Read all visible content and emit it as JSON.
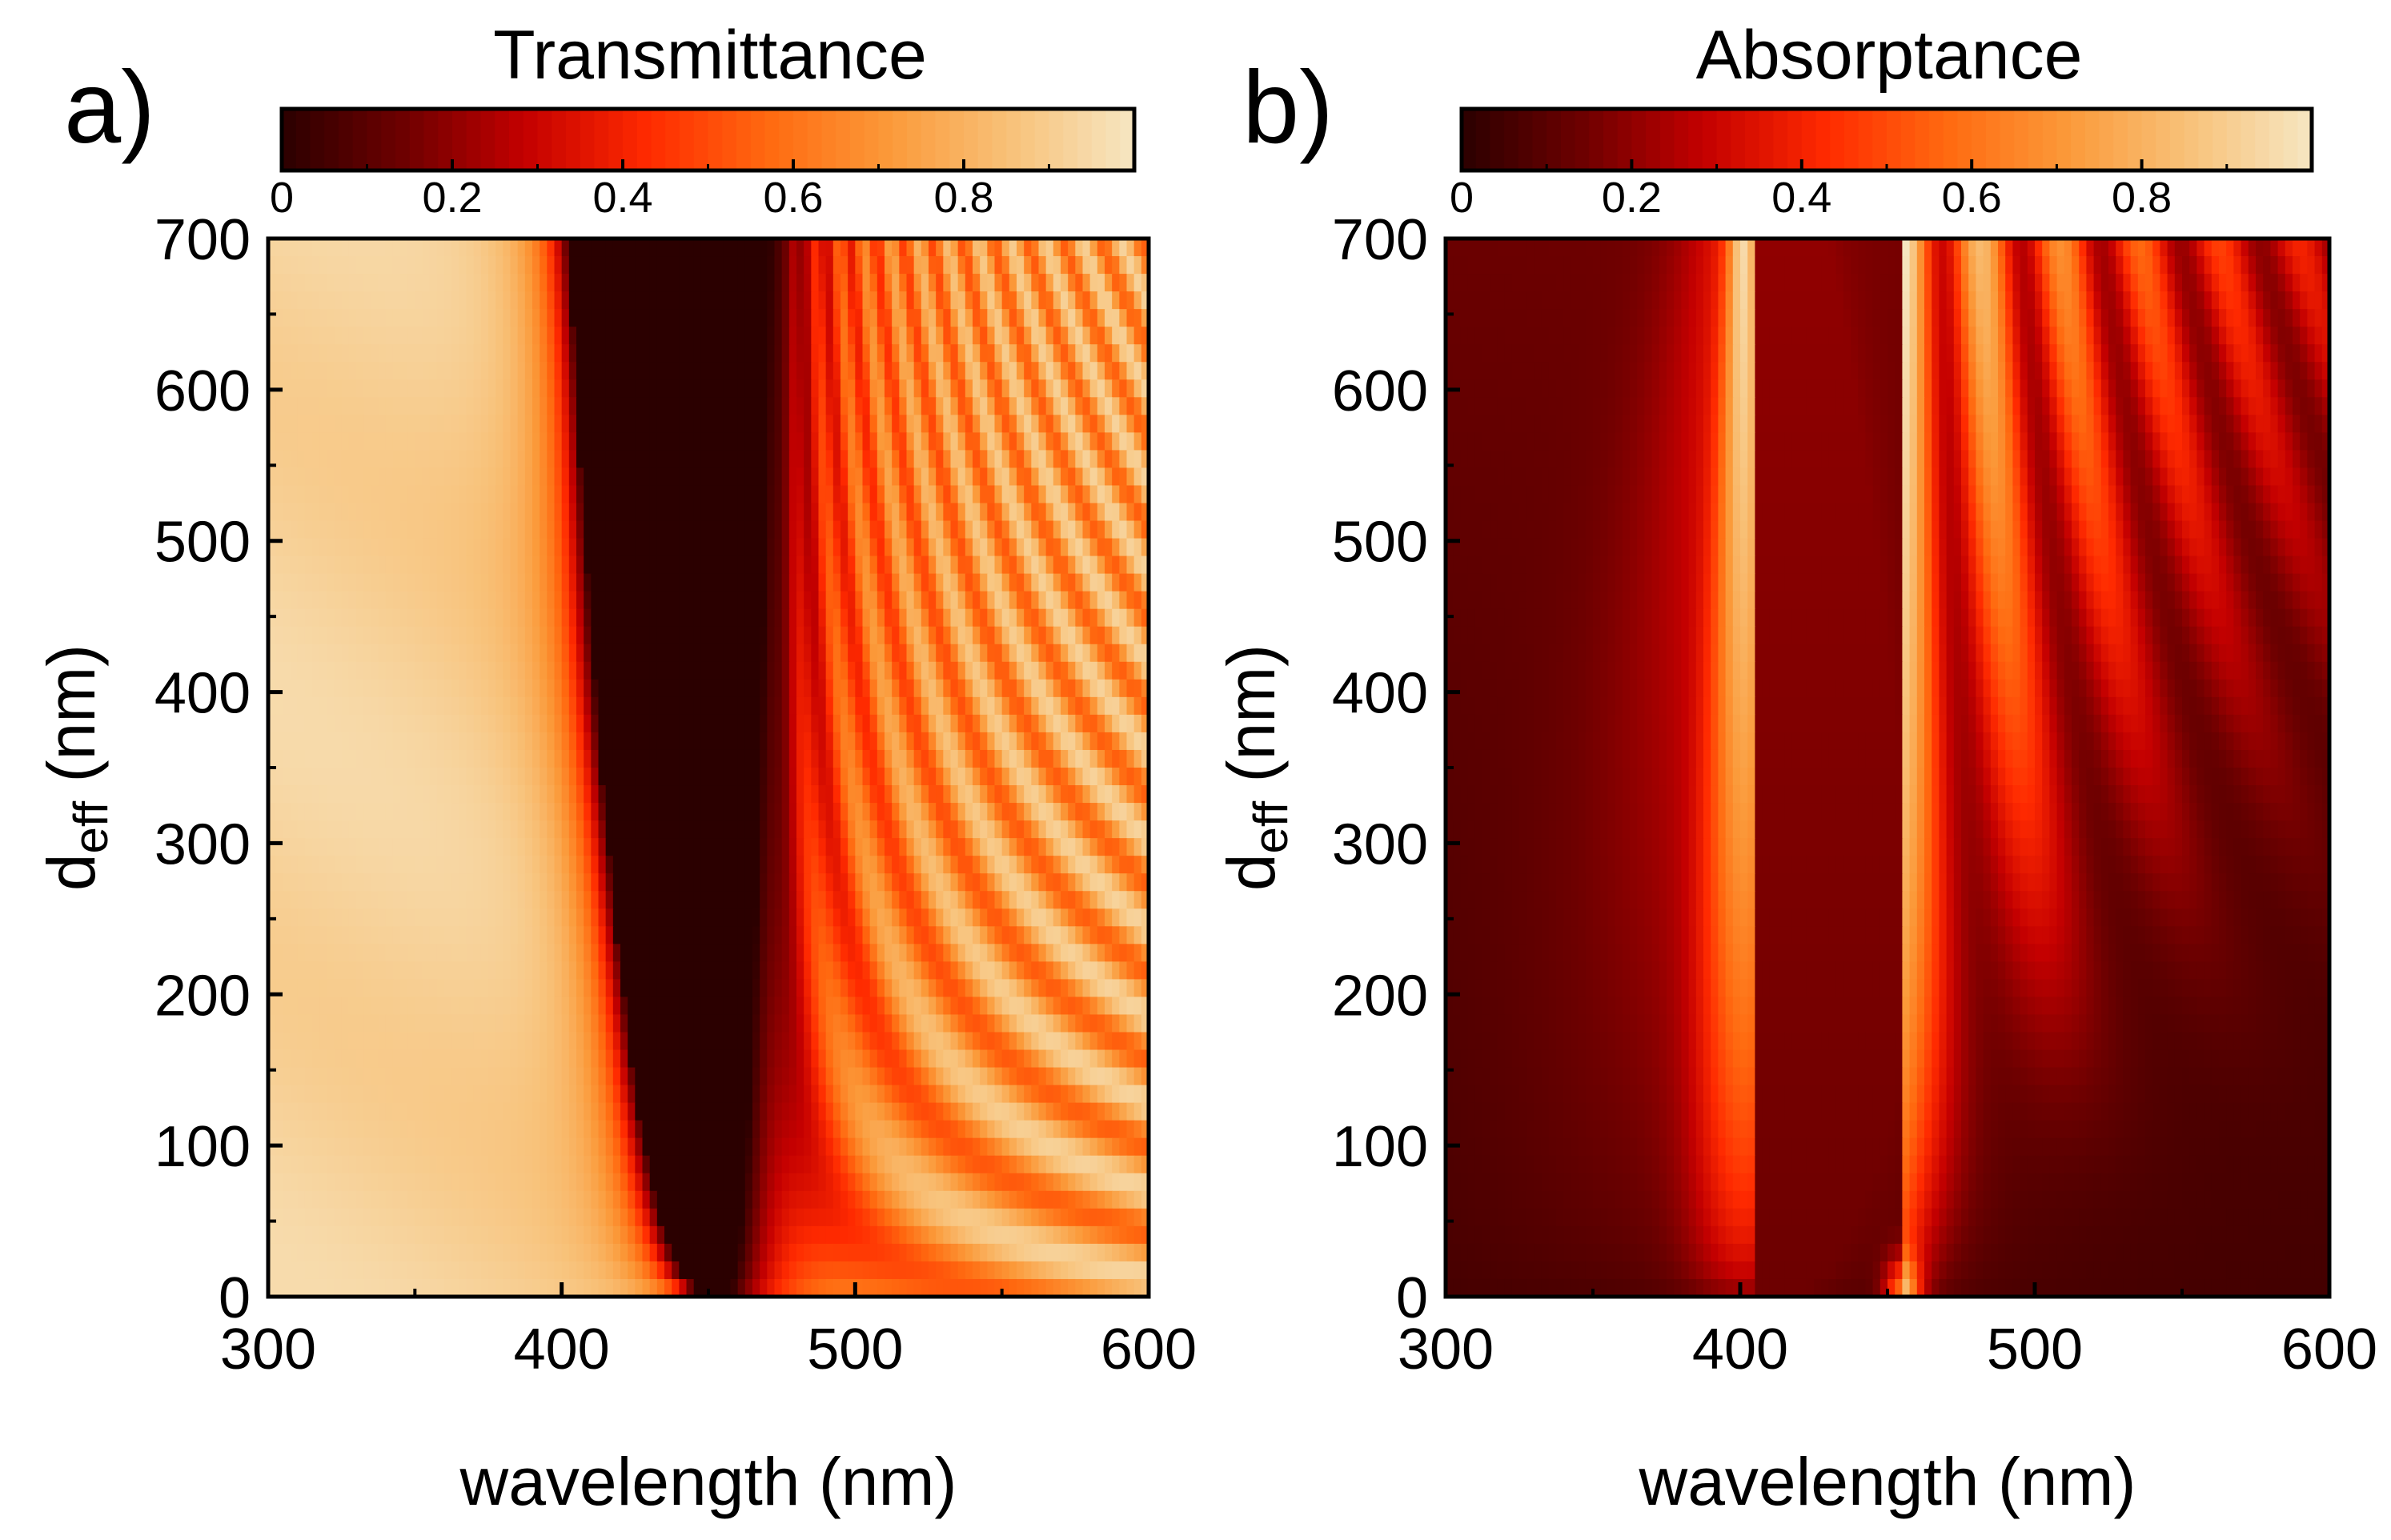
{
  "chart_data": [
    {
      "type": "heatmap",
      "panel_label": "a)",
      "title": "Transmittance",
      "xlabel": "wavelength (nm)",
      "ylabel_main": "d",
      "ylabel_sub": "eff",
      "ylabel_tail": " (nm)",
      "xlim": [
        300,
        600
      ],
      "ylim": [
        0,
        700
      ],
      "x_ticks": [
        "300",
        "400",
        "500",
        "600"
      ],
      "y_ticks": [
        "0",
        "100",
        "200",
        "300",
        "400",
        "500",
        "600",
        "700"
      ],
      "colorbar": {
        "range": [
          0,
          1
        ],
        "ticks": [
          "0",
          "0.2",
          "0.4",
          "0.6",
          "0.8"
        ]
      },
      "description_values": {
        "stop_band_center_nm": 455,
        "stop_band_edges_at_700nm": [
          402,
          471
        ],
        "value_inside_band": 0.0,
        "value_outside_band": 0.95
      },
      "colormap": [
        "#2b0000",
        "#6e0000",
        "#c40000",
        "#ff2a00",
        "#ff6a10",
        "#fb9a3a",
        "#f8c27a",
        "#f6e6c2"
      ]
    },
    {
      "type": "heatmap",
      "panel_label": "b)",
      "title": "Absorptance",
      "xlabel": "wavelength (nm)",
      "ylabel_main": "d",
      "ylabel_sub": "eff",
      "ylabel_tail": " (nm)",
      "xlim": [
        300,
        600
      ],
      "ylim": [
        0,
        700
      ],
      "x_ticks": [
        "300",
        "400",
        "500",
        "600"
      ],
      "y_ticks": [
        "0",
        "100",
        "200",
        "300",
        "400",
        "500",
        "600",
        "700"
      ],
      "colorbar": {
        "range": [
          0,
          1
        ],
        "ticks": [
          "0",
          "0.2",
          "0.4",
          "0.6",
          "0.8"
        ]
      },
      "description_values": {
        "absorption_peak_1_nm": 400,
        "absorption_peak_2_nm": 458,
        "background_value": 0.08
      },
      "colormap": [
        "#2b0000",
        "#6e0000",
        "#c40000",
        "#ff2a00",
        "#ff6a10",
        "#fb9a3a",
        "#f8c27a",
        "#f6e6c2"
      ]
    }
  ]
}
